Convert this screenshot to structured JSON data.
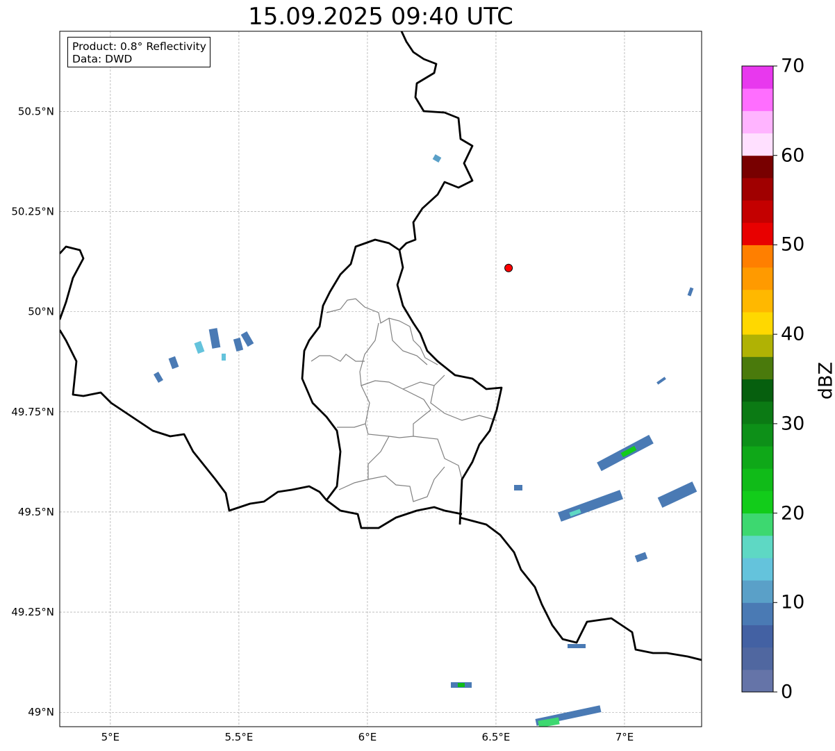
{
  "title": "15.09.2025 09:40 UTC",
  "info": {
    "product": "Product: 0.8° Reflectivity",
    "data": "Data: DWD"
  },
  "axes": {
    "lon_ticks": [
      {
        "v": 5,
        "label": "5°E"
      },
      {
        "v": 5.5,
        "label": "5.5°E"
      },
      {
        "v": 6,
        "label": "6°E"
      },
      {
        "v": 6.5,
        "label": "6.5°E"
      },
      {
        "v": 7,
        "label": "7°E"
      }
    ],
    "lat_ticks": [
      {
        "v": 50.5,
        "label": "50.5°N"
      },
      {
        "v": 50.25,
        "label": "50.25°N"
      },
      {
        "v": 50,
        "label": "50°N"
      },
      {
        "v": 49.75,
        "label": "49.75°N"
      },
      {
        "v": 49.5,
        "label": "49.5°N"
      },
      {
        "v": 49.25,
        "label": "49.25°N"
      },
      {
        "v": 49,
        "label": "49°N"
      }
    ],
    "lon_range": [
      4.803,
      7.3
    ],
    "lat_range": [
      48.964,
      50.7
    ]
  },
  "radar_site": {
    "lon": 6.549,
    "lat": 50.109,
    "color": "#ff0000"
  },
  "colorbar": {
    "label": "dBZ",
    "ticks": [
      "0",
      "10",
      "20",
      "30",
      "40",
      "50",
      "60",
      "70"
    ],
    "range": [
      0,
      70
    ],
    "colors": [
      "#6574a8",
      "#5067a0",
      "#4361a3",
      "#4a7ab4",
      "#5aa0c8",
      "#64c3dc",
      "#5ed8c4",
      "#3dd870",
      "#12cc1a",
      "#10bb18",
      "#0fa818",
      "#0d9018",
      "#0b7a14",
      "#065f0e",
      "#4a7a0c",
      "#b0b204",
      "#ffd800",
      "#ffb800",
      "#ff9a00",
      "#ff7f00",
      "#e80000",
      "#c40000",
      "#a00000",
      "#780000",
      "#ffe0ff",
      "#ffb4ff",
      "#ff6eff",
      "#e838ee"
    ]
  }
}
